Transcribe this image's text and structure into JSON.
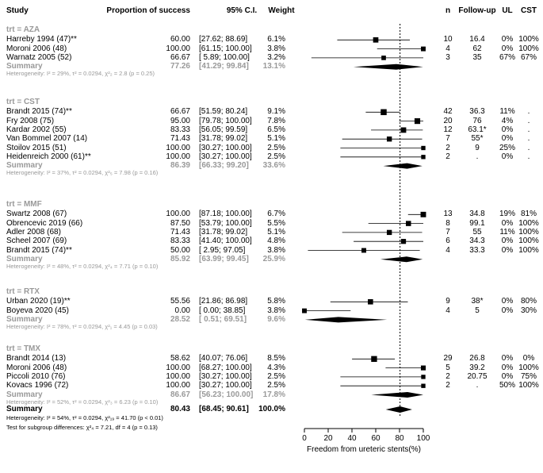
{
  "chart_data": {
    "type": "forest",
    "headers": {
      "study": "Study",
      "prop": "Proportion of success",
      "ci": "95% C.I.",
      "weight": "Weight",
      "n": "n",
      "followup": "Follow-up",
      "ul": "UL",
      "cst": "CST"
    },
    "xlabel": "Freedom from ureteric stents(%)",
    "xlim": [
      0,
      100
    ],
    "xticks": [
      "0",
      "20",
      "40",
      "60",
      "80",
      "100"
    ],
    "reference_line": 80.43,
    "groups": [
      {
        "name": "trt = AZA",
        "studies": [
          {
            "label": "Harreby 1994 (47)**",
            "est": 60.0,
            "lo": 27.62,
            "hi": 88.69,
            "prop": "60.00",
            "ci": "[27.62; 88.69]",
            "weight": "6.1%",
            "n": "10",
            "followup": "16.4",
            "ul": "0%",
            "cst": "100%"
          },
          {
            "label": "Moroni 2006 (48)",
            "est": 100.0,
            "lo": 61.15,
            "hi": 100.0,
            "prop": "100.00",
            "ci": "[61.15; 100.00]",
            "weight": "3.8%",
            "n": "4",
            "followup": "62",
            "ul": "0%",
            "cst": "100%"
          },
          {
            "label": "Warnatz 2005 (52)",
            "est": 66.67,
            "lo": 5.89,
            "hi": 100.0,
            "prop": "66.67",
            "ci": "[ 5.89; 100.00]",
            "weight": "3.2%",
            "n": "3",
            "followup": "35",
            "ul": "67%",
            "cst": "67%"
          }
        ],
        "summary": {
          "label": "Summary",
          "est": 77.26,
          "lo": 41.29,
          "hi": 99.84,
          "prop": "77.26",
          "ci": "[41.29; 99.84]",
          "weight": "13.1%"
        },
        "heterogeneity": "Heterogeneity: I² = 29%, τ² = 0.0294, χ²₂ = 2.8 (p = 0.25)"
      },
      {
        "name": "trt = CST",
        "studies": [
          {
            "label": "Brandt 2015 (74)**",
            "est": 66.67,
            "lo": 51.59,
            "hi": 80.24,
            "prop": "66.67",
            "ci": "[51.59; 80.24]",
            "weight": "9.1%",
            "n": "42",
            "followup": "36.3",
            "ul": "11%",
            "cst": "."
          },
          {
            "label": "Fry 2008 (75)",
            "est": 95.0,
            "lo": 79.78,
            "hi": 100.0,
            "prop": "95.00",
            "ci": "[79.78; 100.00]",
            "weight": "7.8%",
            "n": "20",
            "followup": "76",
            "ul": "4%",
            "cst": "."
          },
          {
            "label": "Kardar 2002 (55)",
            "est": 83.33,
            "lo": 56.05,
            "hi": 99.59,
            "prop": "83.33",
            "ci": "[56.05; 99.59]",
            "weight": "6.5%",
            "n": "12",
            "followup": "63.1*",
            "ul": "0%",
            "cst": "."
          },
          {
            "label": "Van Bommel 2007 (14)",
            "est": 71.43,
            "lo": 31.78,
            "hi": 99.02,
            "prop": "71.43",
            "ci": "[31.78; 99.02]",
            "weight": "5.1%",
            "n": "7",
            "followup": "55*",
            "ul": "0%",
            "cst": "."
          },
          {
            "label": "Stoilov 2015 (51)",
            "est": 100.0,
            "lo": 30.27,
            "hi": 100.0,
            "prop": "100.00",
            "ci": "[30.27; 100.00]",
            "weight": "2.5%",
            "n": "2",
            "followup": "9",
            "ul": "25%",
            "cst": "."
          },
          {
            "label": "Heidenreich 2000 (61)**",
            "est": 100.0,
            "lo": 30.27,
            "hi": 100.0,
            "prop": "100.00",
            "ci": "[30.27; 100.00]",
            "weight": "2.5%",
            "n": "2",
            "followup": ".",
            "ul": "0%",
            "cst": "."
          }
        ],
        "summary": {
          "label": "Summary",
          "est": 86.39,
          "lo": 66.33,
          "hi": 99.2,
          "prop": "86.39",
          "ci": "[66.33; 99.20]",
          "weight": "33.6%"
        },
        "heterogeneity": "Heterogeneity: I² = 37%, τ² = 0.0294, χ²₅ = 7.98 (p = 0.16)"
      },
      {
        "name": "trt = MMF",
        "studies": [
          {
            "label": "Swartz 2008 (67)",
            "est": 100.0,
            "lo": 87.18,
            "hi": 100.0,
            "prop": "100.00",
            "ci": "[87.18; 100.00]",
            "weight": "6.7%",
            "n": "13",
            "followup": "34.8",
            "ul": "19%",
            "cst": "81%"
          },
          {
            "label": "Obrencevic 2019 (66)",
            "est": 87.5,
            "lo": 53.79,
            "hi": 100.0,
            "prop": "87.50",
            "ci": "[53.79; 100.00]",
            "weight": "5.5%",
            "n": "8",
            "followup": "99.1",
            "ul": "0%",
            "cst": "100%"
          },
          {
            "label": "Adler 2008 (68)",
            "est": 71.43,
            "lo": 31.78,
            "hi": 99.02,
            "prop": "71.43",
            "ci": "[31.78; 99.02]",
            "weight": "5.1%",
            "n": "7",
            "followup": "55",
            "ul": "11%",
            "cst": "100%"
          },
          {
            "label": "Scheel 2007 (69)",
            "est": 83.33,
            "lo": 41.4,
            "hi": 100.0,
            "prop": "83.33",
            "ci": "[41.40; 100.00]",
            "weight": "4.8%",
            "n": "6",
            "followup": "34.3",
            "ul": "0%",
            "cst": "100%"
          },
          {
            "label": "Brandt 2015 (74)**",
            "est": 50.0,
            "lo": 2.95,
            "hi": 97.05,
            "prop": "50.00",
            "ci": "[ 2.95; 97.05]",
            "weight": "3.8%",
            "n": "4",
            "followup": "33.3",
            "ul": "0%",
            "cst": "100%"
          }
        ],
        "summary": {
          "label": "Summary",
          "est": 85.92,
          "lo": 63.99,
          "hi": 99.45,
          "prop": "85.92",
          "ci": "[63.99; 99.45]",
          "weight": "25.9%"
        },
        "heterogeneity": "Heterogeneity: I² = 48%, τ² = 0.0294, χ²₄ = 7.71 (p = 0.10)"
      },
      {
        "name": "trt = RTX",
        "studies": [
          {
            "label": "Urban 2020 (19)**",
            "est": 55.56,
            "lo": 21.86,
            "hi": 86.98,
            "prop": "55.56",
            "ci": "[21.86; 86.98]",
            "weight": "5.8%",
            "n": "9",
            "followup": "38*",
            "ul": "0%",
            "cst": "80%"
          },
          {
            "label": "Boyeva 2020 (45)",
            "est": 0.0,
            "lo": 0.0,
            "hi": 38.85,
            "prop": "0.00",
            "ci": "[ 0.00; 38.85]",
            "weight": "3.8%",
            "n": "4",
            "followup": "5",
            "ul": "0%",
            "cst": "30%"
          }
        ],
        "summary": {
          "label": "Summary",
          "est": 28.52,
          "lo": 0.51,
          "hi": 69.51,
          "prop": "28.52",
          "ci": "[ 0.51; 69.51]",
          "weight": "9.6%"
        },
        "heterogeneity": "Heterogeneity: I² = 78%, τ² = 0.0294, χ²₁ = 4.45 (p = 0.03)"
      },
      {
        "name": "trt = TMX",
        "studies": [
          {
            "label": "Brandt 2014 (13)",
            "est": 58.62,
            "lo": 40.07,
            "hi": 76.06,
            "prop": "58.62",
            "ci": "[40.07; 76.06]",
            "weight": "8.5%",
            "n": "29",
            "followup": "26.8",
            "ul": "0%",
            "cst": "0%"
          },
          {
            "label": "Moroni 2006 (48)",
            "est": 100.0,
            "lo": 68.27,
            "hi": 100.0,
            "prop": "100.00",
            "ci": "[68.27; 100.00]",
            "weight": "4.3%",
            "n": "5",
            "followup": "39.2",
            "ul": "0%",
            "cst": "100%"
          },
          {
            "label": "Piccoli 2010 (76)",
            "est": 100.0,
            "lo": 30.27,
            "hi": 100.0,
            "prop": "100.00",
            "ci": "[30.27; 100.00]",
            "weight": "2.5%",
            "n": "2",
            "followup": "20.75",
            "ul": "0%",
            "cst": "75%"
          },
          {
            "label": "Kovacs 1996 (72)",
            "est": 100.0,
            "lo": 30.27,
            "hi": 100.0,
            "prop": "100.00",
            "ci": "[30.27; 100.00]",
            "weight": "2.5%",
            "n": "2",
            "followup": ".",
            "ul": "50%",
            "cst": "100%"
          }
        ],
        "summary": {
          "label": "Summary",
          "est": 86.67,
          "lo": 56.23,
          "hi": 100.0,
          "prop": "86.67",
          "ci": "[56.23; 100.00]",
          "weight": "17.8%"
        },
        "heterogeneity": "Heterogeneity: I² = 52%, τ² = 0.0294, χ²₃ = 6.23 (p = 0.10)"
      }
    ],
    "overall": {
      "label": "Summary",
      "est": 80.43,
      "lo": 68.45,
      "hi": 90.61,
      "prop": "80.43",
      "ci": "[68.45; 90.61]",
      "weight": "100.0%"
    },
    "overall_heterogeneity": "Heterogeneity: I² = 54%, τ² = 0.0294, χ²₁₉ = 41.70 (p < 0.01)",
    "subgroup_test": "Test for subgroup differences: χ²₄ = 7.21, df = 4 (p = 0.13)"
  }
}
